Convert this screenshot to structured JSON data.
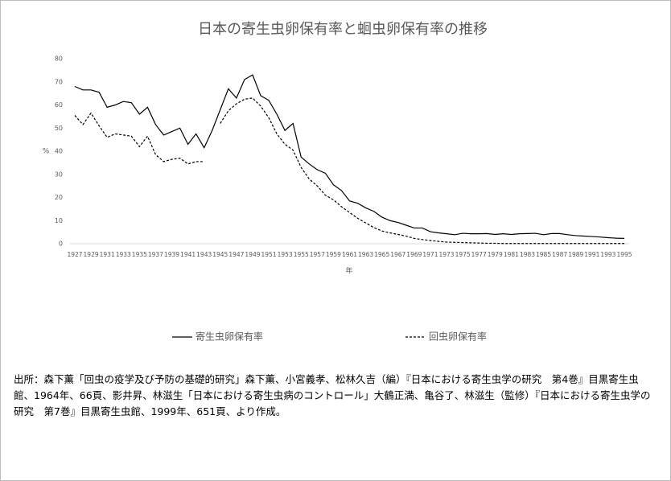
{
  "chart_data": {
    "type": "line",
    "title": "日本の寄生虫卵保有率と蛔虫卵保有率の推移",
    "x_label": "年",
    "y_label": "%",
    "x": [
      1927,
      1928,
      1929,
      1930,
      1931,
      1932,
      1933,
      1934,
      1935,
      1936,
      1937,
      1938,
      1939,
      1940,
      1941,
      1942,
      1943,
      1944,
      1945,
      1946,
      1947,
      1948,
      1949,
      1950,
      1951,
      1952,
      1953,
      1954,
      1955,
      1956,
      1957,
      1958,
      1959,
      1960,
      1961,
      1962,
      1963,
      1964,
      1965,
      1966,
      1967,
      1968,
      1969,
      1970,
      1971,
      1972,
      1973,
      1974,
      1975,
      1976,
      1977,
      1978,
      1979,
      1980,
      1981,
      1982,
      1983,
      1984,
      1985,
      1986,
      1987,
      1988,
      1989,
      1990,
      1991,
      1992,
      1993,
      1994,
      1995
    ],
    "series": [
      {
        "name": "寄生虫卵保有率",
        "color": "#000000",
        "dash": false,
        "values": [
          68,
          66.5,
          66.5,
          65.5,
          59,
          60,
          61.5,
          61,
          56,
          59,
          51.5,
          47,
          48.5,
          50,
          43,
          47.5,
          41.5,
          49,
          58,
          67,
          63,
          71,
          73,
          64,
          62,
          56,
          49,
          52,
          37.5,
          34.5,
          32,
          30.5,
          25.5,
          23,
          18.5,
          17.5,
          15.5,
          14,
          11.5,
          10,
          9.2,
          8,
          6.8,
          6.8,
          5.2,
          4.7,
          4.3,
          3.9,
          4.5,
          4.3,
          4.3,
          4.4,
          4,
          4.3,
          4,
          4.3,
          4.4,
          4.5,
          3.9,
          4.4,
          4.4,
          3.9,
          3.5,
          3.3,
          3.1,
          2.9,
          2.6,
          2.4,
          2.3
        ]
      },
      {
        "name": "回虫卵保有率",
        "color": "#000000",
        "dash": true,
        "values": [
          55.5,
          51.5,
          56.5,
          51,
          46,
          47.5,
          47,
          46.5,
          42,
          46.5,
          38.5,
          35.5,
          36.5,
          37,
          34.5,
          35.5,
          35.5,
          null,
          52,
          57.5,
          60.5,
          62.5,
          63,
          59.5,
          54.5,
          47.5,
          43,
          40.5,
          33,
          28,
          25,
          21,
          19,
          16,
          13.5,
          11,
          9,
          7,
          5.5,
          4.7,
          4,
          3.3,
          2.3,
          1.8,
          1.4,
          1,
          0.7,
          0.6,
          0.5,
          0.4,
          0.3,
          0.2,
          0.2,
          0.1,
          0.1,
          0.1,
          0.1,
          0.1,
          0.1,
          0.1,
          0.1,
          0.1,
          0.1,
          0.1,
          0.1,
          0.1,
          0.1,
          0.1,
          0.1
        ]
      }
    ],
    "xlim": [
      1927,
      1995
    ],
    "xticks": [
      1927,
      1929,
      1931,
      1933,
      1935,
      1937,
      1939,
      1941,
      1943,
      1945,
      1947,
      1949,
      1951,
      1953,
      1955,
      1957,
      1959,
      1961,
      1963,
      1965,
      1967,
      1969,
      1971,
      1973,
      1975,
      1977,
      1979,
      1981,
      1983,
      1985,
      1987,
      1989,
      1991,
      1993,
      1995
    ],
    "ylim": [
      0,
      80
    ],
    "yticks": [
      0,
      10,
      20,
      30,
      40,
      50,
      60,
      70,
      80
    ],
    "grid": false,
    "legend": "bottom"
  },
  "source": "出所：森下薫「回虫の疫学及び予防の基礎的研究」森下薫、小宮義孝、松林久吉（編）『日本における寄生虫学の研究　第4巻』目黒寄生虫館、1964年、66頁、影井昇、林滋生「日本における寄生虫病のコントロール」大鶴正満、亀谷了、林滋生（監修）『日本における寄生虫学の研究　第7巻』目黒寄生虫館、1999年、651頁、より作成。"
}
